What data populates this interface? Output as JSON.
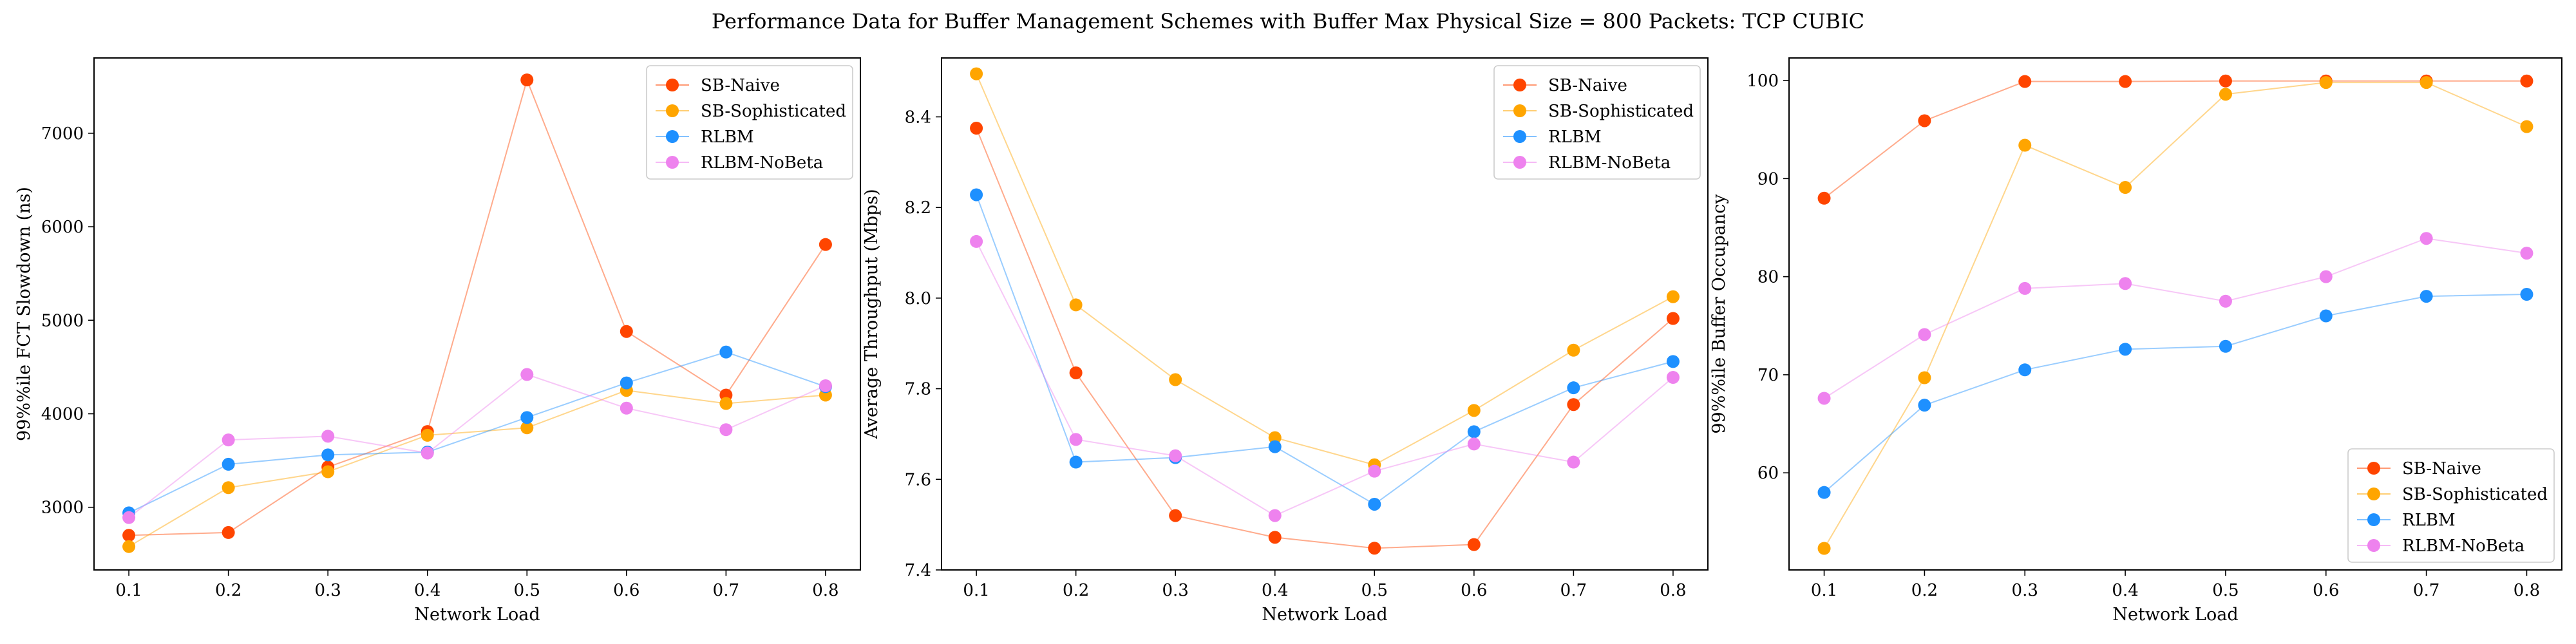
{
  "suptitle": "Performance Data for Buffer Management Schemes with Buffer Max Physical Size = 800 Packets: TCP CUBIC",
  "colors": {
    "SB-Naive": "#ff4500",
    "SB-Sophisticated": "#ffa500",
    "RLBM": "#1e90ff",
    "RLBM-NoBeta": "#ee82ee"
  },
  "chart_data": [
    {
      "type": "line",
      "title": "",
      "xlabel": "Network Load",
      "ylabel": "99%%ile FCT Slowdown (ns)",
      "x": [
        0.1,
        0.2,
        0.3,
        0.4,
        0.5,
        0.6,
        0.7,
        0.8
      ],
      "xticks": [
        "0.1",
        "0.2",
        "0.3",
        "0.4",
        "0.5",
        "0.6",
        "0.7",
        "0.8"
      ],
      "yticks": [
        3000,
        4000,
        5000,
        6000,
        7000
      ],
      "xlim": [
        0.065,
        0.835
      ],
      "ylim": [
        2330,
        7805
      ],
      "legend": "upper right",
      "series": [
        {
          "name": "SB-Naive",
          "values": [
            2700,
            2730,
            3430,
            3810,
            7570,
            4880,
            4200,
            5810
          ]
        },
        {
          "name": "SB-Sophisticated",
          "values": [
            2580,
            3210,
            3380,
            3770,
            3850,
            4250,
            4110,
            4200
          ]
        },
        {
          "name": "RLBM",
          "values": [
            2940,
            3460,
            3560,
            3590,
            3960,
            4330,
            4660,
            4290
          ]
        },
        {
          "name": "RLBM-NoBeta",
          "values": [
            2890,
            3720,
            3760,
            3580,
            4420,
            4060,
            3830,
            4300
          ]
        }
      ]
    },
    {
      "type": "line",
      "title": "",
      "xlabel": "Network Load",
      "ylabel": "Average Throughput (Mbps)",
      "x": [
        0.1,
        0.2,
        0.3,
        0.4,
        0.5,
        0.6,
        0.7,
        0.8
      ],
      "xticks": [
        "0.1",
        "0.2",
        "0.3",
        "0.4",
        "0.5",
        "0.6",
        "0.7",
        "0.8"
      ],
      "yticks": [
        7.4,
        7.6,
        7.8,
        8.0,
        8.2,
        8.4
      ],
      "yticklabels": [
        "7.4",
        "7.6",
        "7.8",
        "8.0",
        "8.2",
        "8.4"
      ],
      "xlim": [
        0.065,
        0.835
      ],
      "ylim": [
        7.4,
        8.53
      ],
      "legend": "upper right",
      "series": [
        {
          "name": "SB-Naive",
          "values": [
            8.375,
            7.835,
            7.52,
            7.472,
            7.448,
            7.456,
            7.765,
            7.955
          ]
        },
        {
          "name": "SB-Sophisticated",
          "values": [
            8.495,
            7.985,
            7.82,
            7.692,
            7.632,
            7.752,
            7.885,
            8.003
          ]
        },
        {
          "name": "RLBM",
          "values": [
            8.228,
            7.638,
            7.648,
            7.672,
            7.545,
            7.705,
            7.802,
            7.86
          ]
        },
        {
          "name": "RLBM-NoBeta",
          "values": [
            8.125,
            7.688,
            7.652,
            7.52,
            7.618,
            7.678,
            7.638,
            7.825
          ]
        }
      ]
    },
    {
      "type": "line",
      "title": "",
      "xlabel": "Network Load",
      "ylabel": "99%%ile Buffer Occupancy",
      "x": [
        0.1,
        0.2,
        0.3,
        0.4,
        0.5,
        0.6,
        0.7,
        0.8
      ],
      "xticks": [
        "0.1",
        "0.2",
        "0.3",
        "0.4",
        "0.5",
        "0.6",
        "0.7",
        "0.8"
      ],
      "yticks": [
        60,
        70,
        80,
        90,
        100
      ],
      "xlim": [
        0.065,
        0.835
      ],
      "ylim": [
        50.1,
        102.3
      ],
      "legend": "lower right",
      "series": [
        {
          "name": "SB-Naive",
          "values": [
            88.0,
            95.9,
            99.9,
            99.9,
            99.95,
            99.95,
            99.95,
            99.95
          ]
        },
        {
          "name": "SB-Sophisticated",
          "values": [
            52.3,
            69.7,
            93.4,
            89.1,
            98.6,
            99.8,
            99.8,
            95.3
          ]
        },
        {
          "name": "RLBM",
          "values": [
            58.0,
            66.9,
            70.5,
            72.6,
            72.9,
            76.0,
            78.0,
            78.2
          ]
        },
        {
          "name": "RLBM-NoBeta",
          "values": [
            67.6,
            74.1,
            78.8,
            79.3,
            77.5,
            80.0,
            83.9,
            82.4
          ]
        }
      ]
    }
  ]
}
